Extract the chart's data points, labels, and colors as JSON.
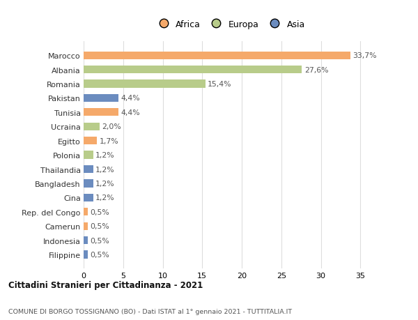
{
  "countries": [
    "Marocco",
    "Albania",
    "Romania",
    "Pakistan",
    "Tunisia",
    "Ucraina",
    "Egitto",
    "Polonia",
    "Thailandia",
    "Bangladesh",
    "Cina",
    "Rep. del Congo",
    "Camerun",
    "Indonesia",
    "Filippine"
  ],
  "values": [
    33.7,
    27.6,
    15.4,
    4.4,
    4.4,
    2.0,
    1.7,
    1.2,
    1.2,
    1.2,
    1.2,
    0.5,
    0.5,
    0.5,
    0.5
  ],
  "labels": [
    "33,7%",
    "27,6%",
    "15,4%",
    "4,4%",
    "4,4%",
    "2,0%",
    "1,7%",
    "1,2%",
    "1,2%",
    "1,2%",
    "1,2%",
    "0,5%",
    "0,5%",
    "0,5%",
    "0,5%"
  ],
  "continents": [
    "Africa",
    "Europa",
    "Europa",
    "Asia",
    "Africa",
    "Europa",
    "Africa",
    "Europa",
    "Asia",
    "Asia",
    "Asia",
    "Africa",
    "Africa",
    "Asia",
    "Asia"
  ],
  "colors": {
    "Africa": "#F5A96A",
    "Europa": "#B8CC8A",
    "Asia": "#6B8CBF"
  },
  "title1": "Cittadini Stranieri per Cittadinanza - 2021",
  "title2": "COMUNE DI BORGO TOSSIGNANO (BO) - Dati ISTAT al 1° gennaio 2021 - TUTTITALIA.IT",
  "xlim": [
    0,
    37
  ],
  "xticks": [
    0,
    5,
    10,
    15,
    20,
    25,
    30,
    35
  ],
  "background_color": "#ffffff",
  "grid_color": "#dddddd"
}
